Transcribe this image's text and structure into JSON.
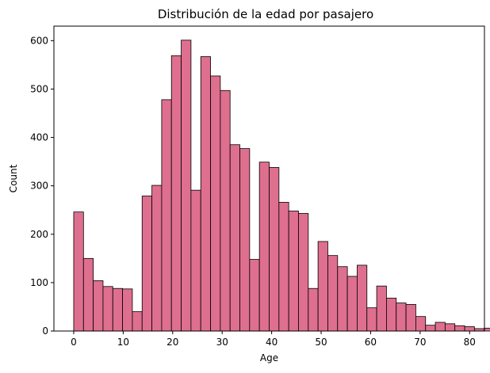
{
  "chart_data": {
    "type": "bar",
    "title": "Distribución de la edad por pasajero",
    "xlabel": "Age",
    "ylabel": "Count",
    "bin_start": 0,
    "bin_width": 1.975,
    "values": [
      246,
      150,
      104,
      92,
      88,
      87,
      40,
      279,
      301,
      478,
      569,
      601,
      291,
      567,
      527,
      497,
      385,
      377,
      148,
      349,
      338,
      266,
      248,
      243,
      88,
      185,
      156,
      133,
      113,
      136,
      48,
      93,
      68,
      58,
      55,
      30,
      12,
      18,
      15,
      11,
      9,
      5,
      6
    ],
    "xlim": [
      -4,
      83
    ],
    "ylim": [
      0,
      630
    ],
    "xticks": [
      0,
      10,
      20,
      30,
      40,
      50,
      60,
      70,
      80
    ],
    "yticks": [
      0,
      100,
      200,
      300,
      400,
      500,
      600
    ],
    "bar_color": "#de6f8f",
    "edge_color": "#000000",
    "grid": false
  }
}
